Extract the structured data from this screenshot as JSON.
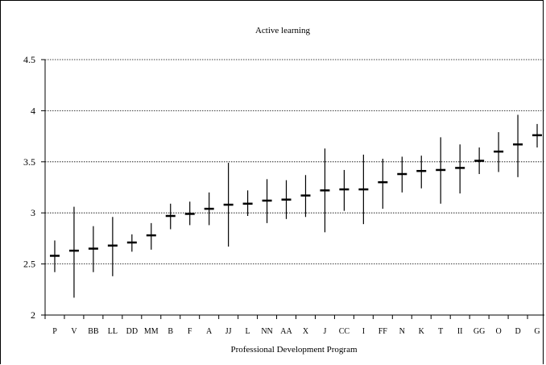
{
  "chart_data": {
    "type": "range",
    "title": "Active learning",
    "xlabel": "Professional Development Program",
    "ylabel": "",
    "ylim": [
      2,
      4.5
    ],
    "yticks": [
      "2",
      "2.5",
      "3",
      "3.5",
      "4",
      "4.5"
    ],
    "grid": "horizontal dotted",
    "categories": [
      "P",
      "V",
      "BB",
      "LL",
      "DD",
      "MM",
      "B",
      "F",
      "A",
      "JJ",
      "L",
      "NN",
      "AA",
      "X",
      "J",
      "CC",
      "I",
      "FF",
      "N",
      "K",
      "T",
      "II",
      "GG",
      "O",
      "D",
      "G"
    ],
    "mean": [
      2.58,
      2.63,
      2.65,
      2.68,
      2.71,
      2.78,
      2.97,
      2.99,
      3.04,
      3.08,
      3.09,
      3.12,
      3.13,
      3.17,
      3.22,
      3.23,
      3.23,
      3.3,
      3.38,
      3.41,
      3.42,
      3.44,
      3.51,
      3.6,
      3.67,
      3.76
    ],
    "lower": [
      2.42,
      2.17,
      2.42,
      2.38,
      2.62,
      2.64,
      2.84,
      2.88,
      2.88,
      2.67,
      2.97,
      2.9,
      2.94,
      2.96,
      2.81,
      3.02,
      2.89,
      3.04,
      3.2,
      3.24,
      3.09,
      3.19,
      3.38,
      3.4,
      3.35,
      3.64
    ],
    "upper": [
      2.73,
      3.06,
      2.87,
      2.96,
      2.79,
      2.9,
      3.09,
      3.11,
      3.2,
      3.49,
      3.22,
      3.33,
      3.32,
      3.37,
      3.63,
      3.42,
      3.57,
      3.53,
      3.55,
      3.56,
      3.74,
      3.67,
      3.64,
      3.79,
      3.96,
      3.87
    ]
  }
}
